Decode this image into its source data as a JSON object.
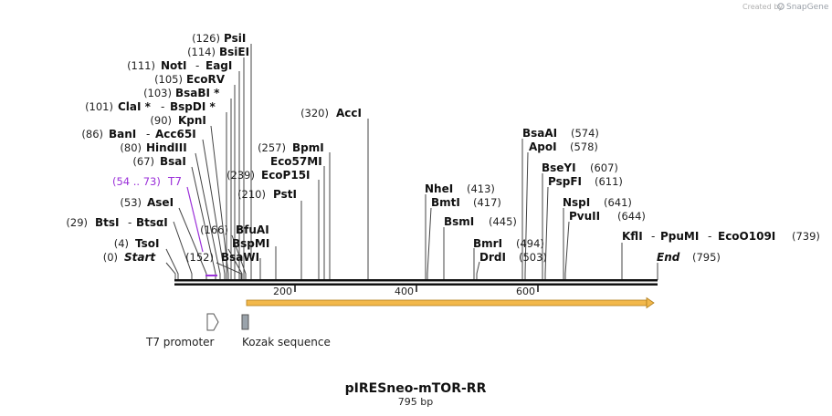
{
  "watermark": {
    "created_by": "Created by",
    "brand": "SnapGene"
  },
  "plasmid": {
    "name": "pIRESneo-mTOR-RR",
    "length_label": "795 bp",
    "length_bp": 795
  },
  "ruler": {
    "ticks": [
      {
        "bp": 200,
        "label": "200"
      },
      {
        "bp": 400,
        "label": "400"
      },
      {
        "bp": 600,
        "label": "600"
      }
    ]
  },
  "sites": [
    {
      "id": "psii",
      "names": [
        "PsiI"
      ],
      "pos": "(126)"
    },
    {
      "id": "bsiei",
      "names": [
        "BsiEI"
      ],
      "pos": "(114)"
    },
    {
      "id": "noti",
      "names": [
        "NotI",
        "EagI"
      ],
      "pos": "(111)"
    },
    {
      "id": "ecorv",
      "names": [
        "EcoRV"
      ],
      "pos": "(105)"
    },
    {
      "id": "bsabi",
      "names": [
        "BsaBI *"
      ],
      "pos": "(103)"
    },
    {
      "id": "clai",
      "names": [
        "ClaI *",
        "BspDI *"
      ],
      "pos": "(101)"
    },
    {
      "id": "kpni",
      "names": [
        "KpnI"
      ],
      "pos": "(90)"
    },
    {
      "id": "bani",
      "names": [
        "BanI",
        "Acc65I"
      ],
      "pos": "(86)"
    },
    {
      "id": "hindiii",
      "names": [
        "HindIII"
      ],
      "pos": "(80)"
    },
    {
      "id": "bsai",
      "names": [
        "BsaI"
      ],
      "pos": "(67)"
    },
    {
      "id": "asei",
      "names": [
        "AseI"
      ],
      "pos": "(53)"
    },
    {
      "id": "btsi",
      "names": [
        "BtsI",
        "BtsαI"
      ],
      "pos": "(29)"
    },
    {
      "id": "tsoi",
      "names": [
        "TsoI"
      ],
      "pos": "(4)"
    },
    {
      "id": "bsawi",
      "names": [
        "BsaWI"
      ],
      "pos": "(152)"
    },
    {
      "id": "bspmi",
      "names": [
        "BspMI"
      ],
      "pos": ""
    },
    {
      "id": "bfuai",
      "names": [
        "BfuAI"
      ],
      "pos": "(166)"
    },
    {
      "id": "psti",
      "names": [
        "PstI"
      ],
      "pos": "(210)"
    },
    {
      "id": "ecop15i",
      "names": [
        "EcoP15I"
      ],
      "pos": "(239)"
    },
    {
      "id": "eco57mi",
      "names": [
        "Eco57MI"
      ],
      "pos": ""
    },
    {
      "id": "bpmi",
      "names": [
        "BpmI"
      ],
      "pos": "(257)"
    },
    {
      "id": "acci",
      "names": [
        "AccI"
      ],
      "pos": "(320)"
    },
    {
      "id": "nhei",
      "names": [
        "NheI"
      ],
      "pos": "(413)"
    },
    {
      "id": "bmti",
      "names": [
        "BmtI"
      ],
      "pos": "(417)"
    },
    {
      "id": "bsmi",
      "names": [
        "BsmI"
      ],
      "pos": "(445)"
    },
    {
      "id": "bmri",
      "names": [
        "BmrI"
      ],
      "pos": "(494)"
    },
    {
      "id": "drdi",
      "names": [
        "DrdI"
      ],
      "pos": "(503)"
    },
    {
      "id": "bsaai",
      "names": [
        "BsaAI"
      ],
      "pos": "(574)"
    },
    {
      "id": "apoi",
      "names": [
        "ApoI"
      ],
      "pos": "(578)"
    },
    {
      "id": "bseyi",
      "names": [
        "BseYI"
      ],
      "pos": "(607)"
    },
    {
      "id": "pspfi",
      "names": [
        "PspFI"
      ],
      "pos": "(611)"
    },
    {
      "id": "nspi",
      "names": [
        "NspI"
      ],
      "pos": "(641)"
    },
    {
      "id": "pvuii",
      "names": [
        "PvuII"
      ],
      "pos": "(644)"
    },
    {
      "id": "kfli",
      "names": [
        "KflI",
        "PpuMI",
        "EcoO109I"
      ],
      "pos": "(739)"
    }
  ],
  "ends": {
    "start_label": "Start",
    "start_pos": "(0)",
    "end_label": "End",
    "end_pos": "(795)"
  },
  "primer": {
    "label": "T7",
    "pos": "(54 .. 73)",
    "color": "#9b30d9"
  },
  "features": {
    "orf_color": "#f2b84b",
    "t7_promoter": "T7 promoter",
    "kozak": "Kozak sequence"
  }
}
